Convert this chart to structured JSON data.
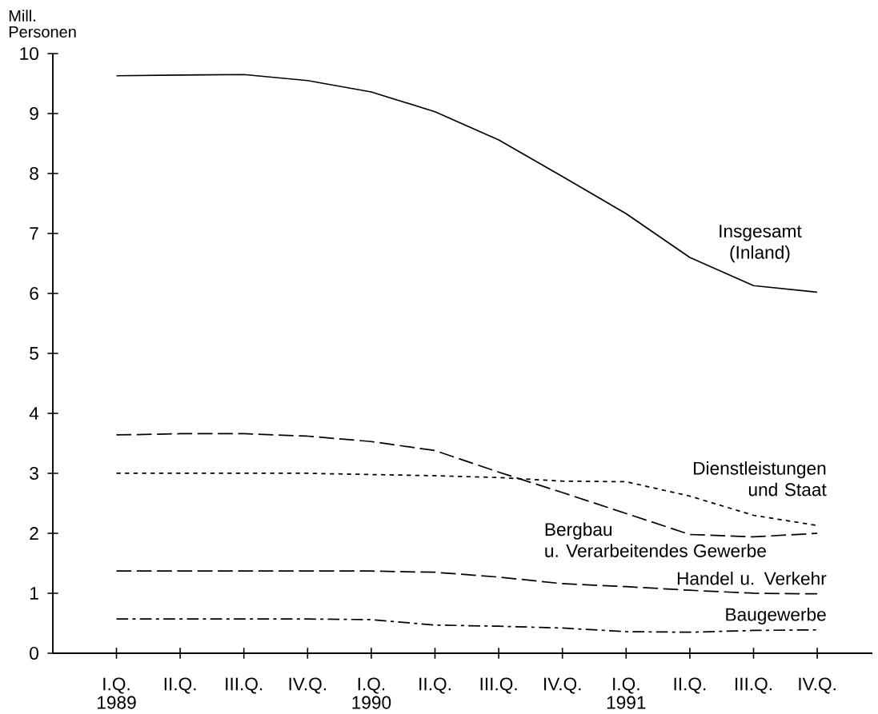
{
  "chart_data": {
    "type": "line",
    "ylabel": "Mill. Personen",
    "categories": [
      "I.Q.",
      "II.Q.",
      "III.Q.",
      "IV.Q.",
      "I.Q.",
      "II.Q.",
      "III.Q.",
      "IV.Q.",
      "I.Q.",
      "II.Q.",
      "III.Q.",
      "IV.Q."
    ],
    "annotations": [
      "1989",
      "1990",
      "1991"
    ],
    "ylim": [
      0,
      10
    ],
    "yticks": [
      0,
      1,
      2,
      3,
      4,
      5,
      6,
      7,
      8,
      9,
      10
    ],
    "grid": false,
    "marker": "none",
    "series": [
      {
        "name": "Insgesamt (Inland)",
        "color": "#000000",
        "line_style": "solid",
        "values": [
          9.63,
          9.64,
          9.65,
          9.55,
          9.36,
          9.03,
          8.56,
          7.95,
          7.33,
          6.6,
          6.13,
          6.02
        ]
      },
      {
        "name": "Dienstleistungen und Staat",
        "color": "#000000",
        "line_style": "dotted",
        "values": [
          3.0,
          3.0,
          3.0,
          3.0,
          2.98,
          2.96,
          2.93,
          2.87,
          2.86,
          2.62,
          2.3,
          2.13
        ]
      },
      {
        "name": "Bergbau u. Verarbeitendes Gewerbe",
        "color": "#000000",
        "line_style": "dashed",
        "values": [
          3.64,
          3.66,
          3.66,
          3.62,
          3.53,
          3.38,
          3.02,
          2.68,
          2.33,
          1.98,
          1.94,
          2.0
        ]
      },
      {
        "name": "Handel u. Verkehr",
        "color": "#000000",
        "line_style": "dashed",
        "values": [
          1.37,
          1.37,
          1.37,
          1.37,
          1.37,
          1.35,
          1.27,
          1.16,
          1.11,
          1.05,
          1.0,
          0.99
        ]
      },
      {
        "name": "Baugewerbe",
        "color": "#000000",
        "line_style": "dashdot",
        "values": [
          0.57,
          0.57,
          0.57,
          0.57,
          0.56,
          0.47,
          0.45,
          0.42,
          0.36,
          0.35,
          0.38,
          0.39
        ]
      }
    ]
  }
}
